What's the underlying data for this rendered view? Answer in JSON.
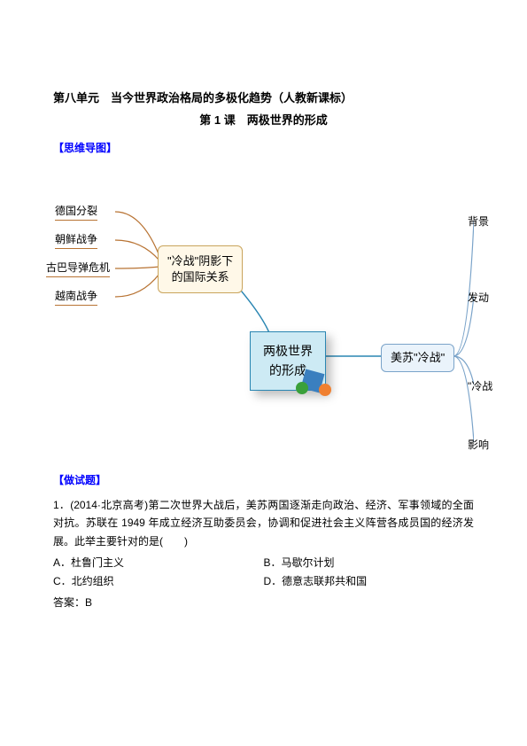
{
  "header": {
    "unit_title": "第八单元　当今世界政治格局的多极化趋势（人教新课标）",
    "lesson_title": "第 1 课　两极世界的形成"
  },
  "sections": {
    "mindmap_label": "【思维导图】",
    "testq_label": "【做试题】"
  },
  "mindmap": {
    "left_items": [
      "德国分裂",
      "朝鲜战争",
      "古巴导弹危机",
      "越南战争"
    ],
    "left_box": "\"冷战\"阴影下\n的国际关系",
    "center_box": "两极世界\n的形成",
    "right_box": "美苏\"冷战\"",
    "right_items": [
      "背景",
      "发动",
      "\"冷战",
      "影响"
    ],
    "colors": {
      "left_text": "#000000",
      "left_underline": "#b87333",
      "left_box_border": "#c9a45c",
      "left_box_bg": "#fff8e8",
      "center_border": "#2a86b2",
      "center_bg": "#cdeaf4",
      "right_box_border": "#7aa3c9",
      "right_box_bg": "#eaf3fb",
      "connector_left": "#b87333",
      "connector_right": "#7aa3c9",
      "connector_center": "#2a86b2",
      "cube_color": "#3a7fbf",
      "ball1": "#3aa03a",
      "ball2": "#f08030"
    }
  },
  "question": {
    "stem": "1．(2014·北京高考)第二次世界大战后，美苏两国逐渐走向政治、经济、军事领域的全面对抗。苏联在 1949 年成立经济互助委员会，协调和促进社会主义阵营各成员国的经济发展。此举主要针对的是(　　)",
    "options": {
      "A": "A．杜鲁门主义",
      "B": "B．马歇尔计划",
      "C": "C．北约组织",
      "D": "D．德意志联邦共和国"
    },
    "answer_label": "答案：B"
  }
}
